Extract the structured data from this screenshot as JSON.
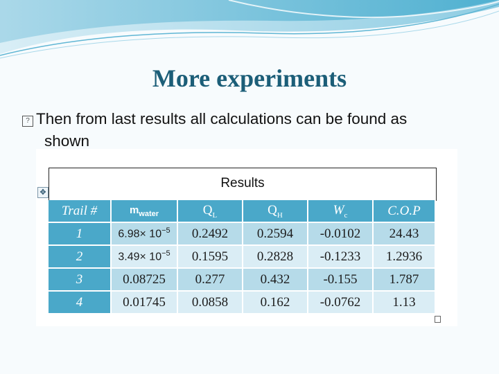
{
  "slide": {
    "title": "More experiments",
    "bullet_line1": "Then from last results all calculations can be found as",
    "bullet_line2": "shown"
  },
  "table": {
    "results_label": "Results",
    "headers": {
      "trail": "Trail #",
      "m_main": "m",
      "m_sub": "water",
      "ql_main": "Q",
      "ql_sub": "L",
      "qh_main": "Q",
      "qh_sub": "H",
      "wc_main": "W",
      "wc_sub": "c",
      "cop": "C.O.P"
    },
    "rows": [
      {
        "trail": "1",
        "m": "6.98× 10",
        "m_exp": "−5",
        "ql": "0.2492",
        "qh": "0.2594",
        "wc": "-0.0102",
        "cop": "24.43"
      },
      {
        "trail": "2",
        "m": "3.49× 10",
        "m_exp": "−5",
        "ql": "0.1595",
        "qh": "0.2828",
        "wc": "-0.1233",
        "cop": "1.2936"
      },
      {
        "trail": "3",
        "m": "0.08725",
        "m_exp": "",
        "ql": "0.277",
        "qh": "0.432",
        "wc": "-0.155",
        "cop": "1.787"
      },
      {
        "trail": "4",
        "m": "0.01745",
        "m_exp": "",
        "ql": "0.0858",
        "qh": "0.162",
        "wc": "-0.0762",
        "cop": "1.13"
      }
    ]
  },
  "colors": {
    "header_bg": "#4aa8c9",
    "row_odd": "#b6dbe9",
    "row_even": "#daedf5",
    "title": "#1c5e78"
  },
  "icons": {
    "bullet": "checkbox-bullet-icon",
    "move": "table-move-handle-icon"
  }
}
